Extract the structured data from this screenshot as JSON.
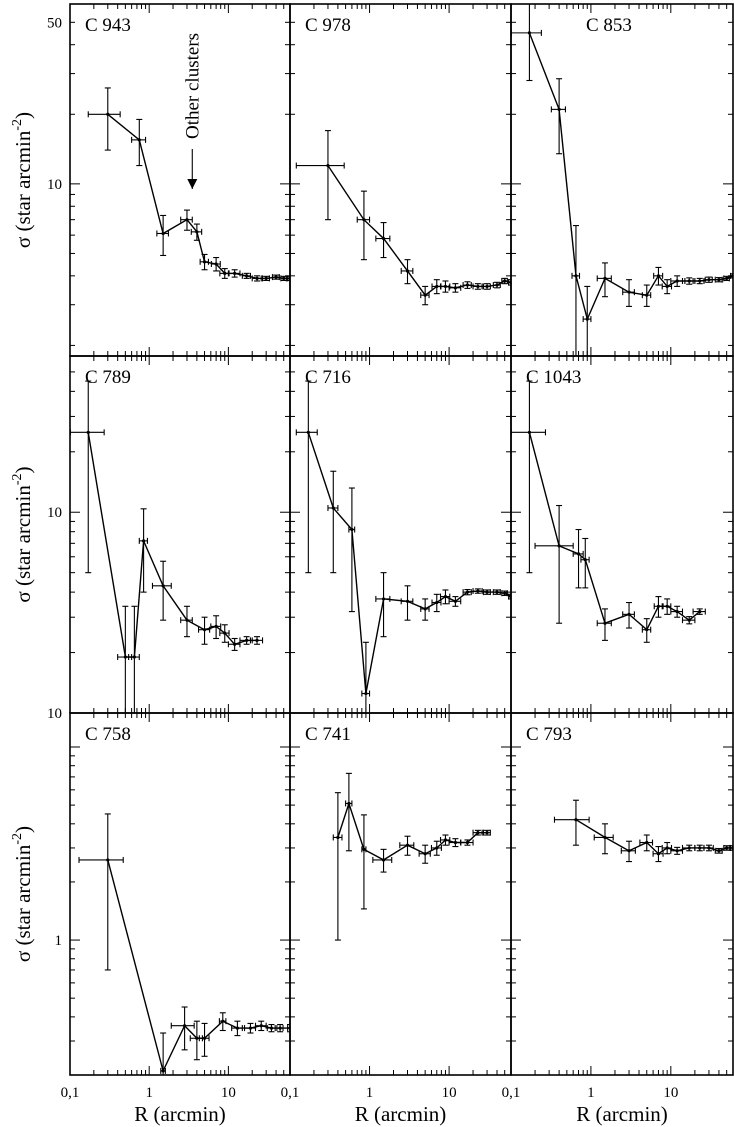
{
  "x_axis": {
    "label": "R (arcmin)",
    "ticks": [
      "0,1",
      "1",
      "10"
    ],
    "log": true,
    "range": [
      0.1,
      60
    ]
  },
  "y_axis_label": "σ (star arcmin",
  "y_axis_label_exp": "-2",
  "y_axis_label_close": ")",
  "rows": [
    {
      "y_log": true,
      "ylim": [
        1.8,
        60
      ],
      "tick_labels": [
        {
          "v": 50,
          "t": "50"
        },
        {
          "v": 10,
          "t": "10"
        }
      ]
    },
    {
      "y_log": true,
      "ylim": [
        1.0,
        60
      ],
      "tick_labels": [
        {
          "v": 10,
          "t": "10"
        },
        {
          "v": 1.0,
          "t": "10"
        }
      ]
    },
    {
      "y_log": true,
      "ylim": [
        0.2,
        15
      ],
      "tick_labels": [
        {
          "v": 1,
          "t": "1"
        }
      ]
    }
  ],
  "annotation": {
    "text": "Other clusters",
    "arrow_x": 3.5,
    "arrow_y": 9.5
  },
  "chart_data": [
    {
      "type": "line",
      "title": "C 943",
      "row": 0,
      "col": 0,
      "x": [
        0.3,
        0.75,
        1.5,
        3.0,
        4.0,
        5.0,
        7.0,
        9.0,
        12,
        17,
        23,
        30,
        40,
        50,
        60
      ],
      "y": [
        20,
        15.5,
        6.1,
        7.0,
        6.2,
        4.6,
        4.5,
        4.1,
        4.1,
        4.0,
        3.9,
        3.9,
        3.95,
        3.9,
        3.9
      ],
      "yerr": [
        6,
        3.5,
        1.2,
        0.7,
        0.5,
        0.35,
        0.3,
        0.2,
        0.15,
        0.1,
        0.1,
        0.08,
        0.08,
        0.08,
        0.08
      ],
      "xerr": [
        0.13,
        0.15,
        0.25,
        0.5,
        0.6,
        0.6,
        0.9,
        1.2,
        2,
        2,
        3,
        3,
        4,
        4,
        4
      ]
    },
    {
      "type": "line",
      "title": "C 978",
      "row": 0,
      "col": 1,
      "x": [
        0.3,
        0.85,
        1.5,
        3.0,
        5.0,
        7.0,
        9.0,
        12,
        17,
        23,
        30,
        40,
        50,
        60
      ],
      "y": [
        12,
        7,
        5.8,
        4.2,
        3.3,
        3.6,
        3.6,
        3.55,
        3.65,
        3.6,
        3.6,
        3.65,
        3.8,
        3.75
      ],
      "yerr": [
        5,
        2.3,
        1.0,
        0.5,
        0.3,
        0.25,
        0.2,
        0.15,
        0.12,
        0.1,
        0.1,
        0.1,
        0.1,
        0.1
      ],
      "xerr": [
        0.18,
        0.15,
        0.3,
        0.5,
        0.6,
        0.9,
        1.2,
        2,
        2,
        3,
        3,
        4,
        4,
        4
      ]
    },
    {
      "type": "line",
      "title": "C 853",
      "row": 0,
      "col": 2,
      "x": [
        0.17,
        0.4,
        0.65,
        0.9,
        1.5,
        3.0,
        5.0,
        7.0,
        9.0,
        12,
        17,
        23,
        30,
        40,
        50,
        60
      ],
      "y": [
        45,
        21,
        4.0,
        2.6,
        3.9,
        3.4,
        3.3,
        4.0,
        3.6,
        3.8,
        3.8,
        3.8,
        3.85,
        3.85,
        3.9,
        4.0
      ],
      "yerr": [
        17,
        7.5,
        2.6,
        1.0,
        0.65,
        0.45,
        0.35,
        0.35,
        0.25,
        0.2,
        0.12,
        0.1,
        0.1,
        0.08,
        0.08,
        0.08
      ],
      "xerr": [
        0.07,
        0.08,
        0.07,
        0.1,
        0.3,
        0.5,
        0.6,
        0.9,
        1.2,
        2,
        2,
        3,
        3,
        4,
        4,
        4
      ]
    },
    {
      "type": "line",
      "title": "C 789",
      "row": 1,
      "col": 0,
      "x": [
        0.17,
        0.5,
        0.65,
        0.85,
        1.5,
        3.0,
        5.0,
        7.0,
        9.0,
        12,
        17,
        23
      ],
      "y": [
        25,
        1.9,
        1.9,
        7.2,
        4.3,
        2.9,
        2.6,
        2.7,
        2.5,
        2.2,
        2.3,
        2.3
      ],
      "yerr": [
        20,
        1.5,
        1.5,
        3.2,
        1.4,
        0.5,
        0.4,
        0.35,
        0.25,
        0.15,
        0.1,
        0.1
      ],
      "xerr": [
        0.1,
        0.1,
        0.1,
        0.1,
        0.4,
        0.5,
        0.8,
        1.0,
        1.2,
        2,
        3,
        4
      ]
    },
    {
      "type": "line",
      "title": "C 716",
      "row": 1,
      "col": 1,
      "x": [
        0.17,
        0.35,
        0.6,
        0.9,
        1.5,
        3.0,
        5.0,
        7.0,
        9.0,
        12,
        17,
        23,
        30,
        40,
        50,
        60
      ],
      "y": [
        25,
        10.5,
        8.2,
        1.25,
        3.7,
        3.6,
        3.3,
        3.55,
        3.8,
        3.6,
        4.0,
        4.05,
        4.0,
        4.0,
        3.95,
        3.8
      ],
      "yerr": [
        20,
        5.5,
        5,
        1.0,
        1.3,
        0.7,
        0.4,
        0.35,
        0.3,
        0.2,
        0.12,
        0.1,
        0.1,
        0.1,
        0.1,
        0.1
      ],
      "xerr": [
        0.05,
        0.05,
        0.05,
        0.1,
        0.3,
        0.5,
        0.6,
        0.9,
        1.2,
        2,
        2,
        3,
        3,
        4,
        4,
        4
      ]
    },
    {
      "type": "line",
      "title": "C 1043",
      "row": 1,
      "col": 2,
      "x": [
        0.17,
        0.4,
        0.7,
        0.85,
        1.5,
        3.0,
        5.0,
        7.0,
        9.0,
        12,
        17,
        23
      ],
      "y": [
        25,
        6.8,
        6.2,
        5.8,
        2.8,
        3.1,
        2.6,
        3.4,
        3.4,
        3.2,
        2.9,
        3.2
      ],
      "yerr": [
        20,
        4,
        2,
        1.6,
        0.5,
        0.45,
        0.35,
        0.4,
        0.3,
        0.2,
        0.12,
        0.1
      ],
      "xerr": [
        0.1,
        0.2,
        0.1,
        0.1,
        0.3,
        0.5,
        0.6,
        0.8,
        1.0,
        2,
        3,
        4
      ]
    },
    {
      "type": "line",
      "title": "C 758",
      "row": 2,
      "col": 0,
      "x": [
        0.3,
        1.5,
        2.8,
        4.0,
        5.0,
        8.5,
        13,
        19,
        26,
        35,
        45,
        60
      ],
      "y": [
        2.6,
        0.21,
        0.36,
        0.31,
        0.31,
        0.38,
        0.35,
        0.35,
        0.36,
        0.35,
        0.35,
        0.35
      ],
      "yerr": [
        1.9,
        0.12,
        0.09,
        0.07,
        0.06,
        0.04,
        0.03,
        0.02,
        0.02,
        0.015,
        0.015,
        0.015
      ],
      "xerr": [
        0.17,
        0.1,
        0.9,
        0.7,
        0.7,
        0.8,
        2,
        3,
        4,
        4,
        4,
        4
      ]
    },
    {
      "type": "line",
      "title": "C 741",
      "row": 2,
      "col": 1,
      "x": [
        0.4,
        0.55,
        0.85,
        1.5,
        3.0,
        5.0,
        7.0,
        9.0,
        12,
        17,
        23,
        30
      ],
      "y": [
        3.4,
        5.1,
        2.95,
        2.6,
        3.1,
        2.8,
        3.0,
        3.3,
        3.2,
        3.2,
        3.6,
        3.6
      ],
      "yerr": [
        2.4,
        2.2,
        1.5,
        0.35,
        0.35,
        0.3,
        0.25,
        0.2,
        0.15,
        0.1,
        0.1,
        0.1
      ],
      "xerr": [
        0.05,
        0.05,
        0.05,
        0.4,
        0.6,
        0.8,
        1.0,
        1.2,
        2,
        3,
        3,
        3
      ]
    },
    {
      "type": "line",
      "title": "C 793",
      "row": 2,
      "col": 2,
      "x": [
        0.65,
        1.5,
        3.0,
        5.0,
        7.0,
        9.0,
        12,
        17,
        23,
        30,
        40,
        50,
        60
      ],
      "y": [
        4.2,
        3.4,
        2.9,
        3.2,
        2.8,
        3.0,
        2.9,
        3.0,
        3.0,
        3.0,
        2.9,
        3.0,
        3.0
      ],
      "yerr": [
        1.1,
        0.6,
        0.35,
        0.3,
        0.25,
        0.2,
        0.12,
        0.1,
        0.1,
        0.1,
        0.08,
        0.08,
        0.08
      ],
      "xerr": [
        0.3,
        0.4,
        0.6,
        0.9,
        1.0,
        1.2,
        2,
        3,
        3,
        4,
        4,
        4,
        4
      ]
    }
  ]
}
